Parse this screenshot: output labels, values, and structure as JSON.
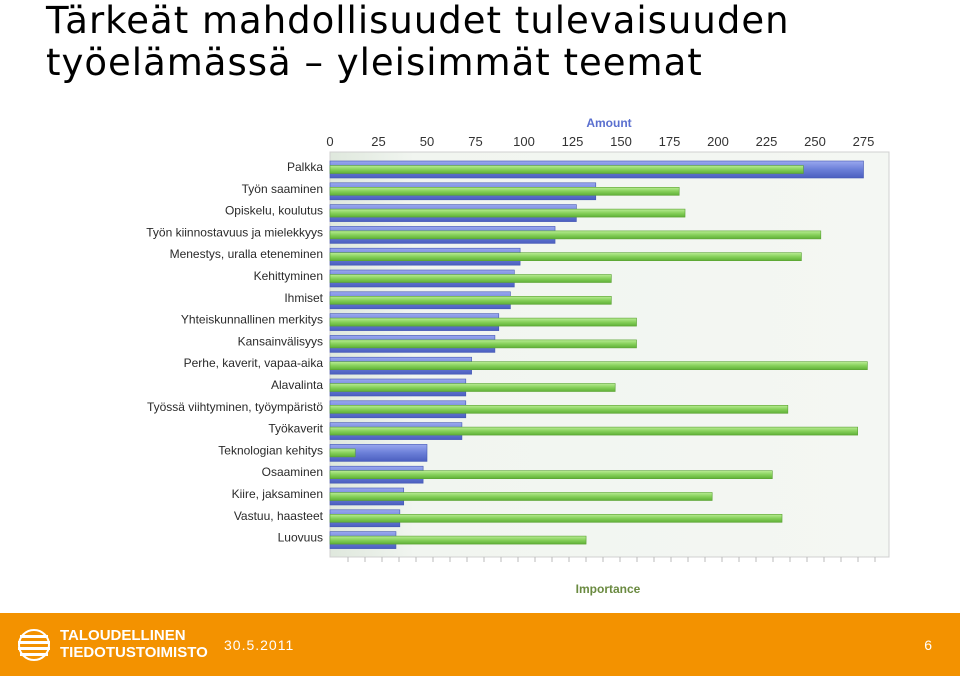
{
  "slide": {
    "title_line1": "Tärkeät mahdollisuudet tulevaisuuden",
    "title_line2": "työelämässä – yleisimmät teemat"
  },
  "footer": {
    "org_line1": "TALOUDELLINEN",
    "org_line2": "TIEDOTUSTOIMISTO",
    "date": "30.5.2011",
    "page_number": "6",
    "background_color": "#f39200"
  },
  "chart_data": {
    "type": "bar",
    "orientation": "horizontal",
    "title": "",
    "xlabel": "Amount",
    "ylabel": "Importance",
    "xlim": [
      0,
      290
    ],
    "xticks": [
      0,
      25,
      50,
      75,
      100,
      125,
      150,
      175,
      200,
      225,
      250,
      275
    ],
    "categories": [
      "Palkka",
      "Työn saaminen",
      "Opiskelu, koulutus",
      "Työn kiinnostavuus ja mielekkyys",
      "Menestys, uralla eteneminen",
      "Kehittyminen",
      "Ihmiset",
      "Yhteiskunnallinen merkitys",
      "Kansainvälisyys",
      "Perhe, kaverit, vapaa-aika",
      "Alavalinta",
      "Työssä viihtyminen, työympäristö",
      "Työkaverit",
      "Teknologian kehitys",
      "Osaaminen",
      "Kiire, jaksaminen",
      "Vastuu, haasteet",
      "Luovuus"
    ],
    "series": [
      {
        "color": "#6b7fd8",
        "values": [
          275,
          137,
          127,
          116,
          98,
          95,
          93,
          87,
          85,
          73,
          70,
          70,
          68,
          50,
          48,
          38,
          36,
          34
        ]
      },
      {
        "color": "#86d05a",
        "values": [
          244,
          180,
          183,
          253,
          243,
          145,
          145,
          158,
          158,
          277,
          147,
          236,
          272,
          13,
          228,
          197,
          233,
          132
        ]
      }
    ],
    "grid": false,
    "plot_background": "#eef4ec"
  }
}
